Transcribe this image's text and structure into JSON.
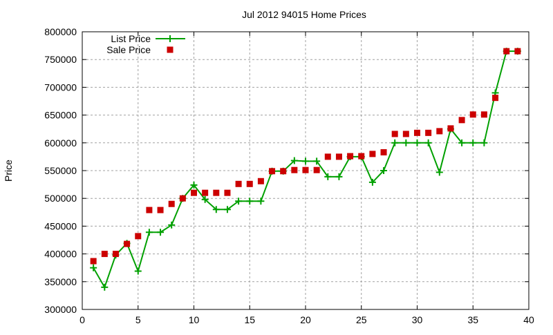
{
  "chart_data": {
    "type": "line",
    "title": "Jul 2012 94015 Home Prices",
    "xlabel": "",
    "ylabel": "Price",
    "xlim": [
      0,
      40
    ],
    "ylim": [
      300000,
      800000
    ],
    "xticks": [
      0,
      5,
      10,
      15,
      20,
      25,
      30,
      35,
      40
    ],
    "yticks": [
      300000,
      350000,
      400000,
      450000,
      500000,
      550000,
      600000,
      650000,
      700000,
      750000,
      800000
    ],
    "grid": true,
    "legend_position": "top-left",
    "x": [
      1,
      2,
      3,
      4,
      5,
      6,
      7,
      8,
      9,
      10,
      11,
      12,
      13,
      14,
      15,
      16,
      17,
      18,
      19,
      20,
      21,
      22,
      23,
      24,
      25,
      26,
      27,
      28,
      29,
      30,
      31,
      32,
      33,
      34,
      35,
      36,
      37,
      38,
      39
    ],
    "series": [
      {
        "name": "List Price",
        "style": "linespoints",
        "marker": "plus",
        "color": "#00a000",
        "values": [
          375000,
          340000,
          398000,
          419000,
          369000,
          439000,
          439000,
          452000,
          500000,
          524000,
          498000,
          480000,
          480000,
          495000,
          495000,
          495000,
          549000,
          549000,
          568000,
          567000,
          567000,
          539000,
          539000,
          575000,
          575000,
          529000,
          550000,
          600000,
          600000,
          600000,
          600000,
          547000,
          625000,
          600000,
          600000,
          600000,
          690000,
          765000,
          765000
        ]
      },
      {
        "name": "Sale Price",
        "style": "points",
        "marker": "square",
        "color": "#cc0000",
        "values": [
          387000,
          400000,
          400000,
          418000,
          432000,
          479000,
          479000,
          490000,
          500000,
          510000,
          510000,
          510000,
          510000,
          526000,
          526000,
          531000,
          549000,
          549000,
          551000,
          551000,
          551000,
          575000,
          575000,
          576000,
          576000,
          580000,
          583000,
          616000,
          616000,
          618000,
          618000,
          621000,
          626000,
          641000,
          651000,
          651000,
          681000,
          765000,
          765000
        ]
      }
    ]
  }
}
